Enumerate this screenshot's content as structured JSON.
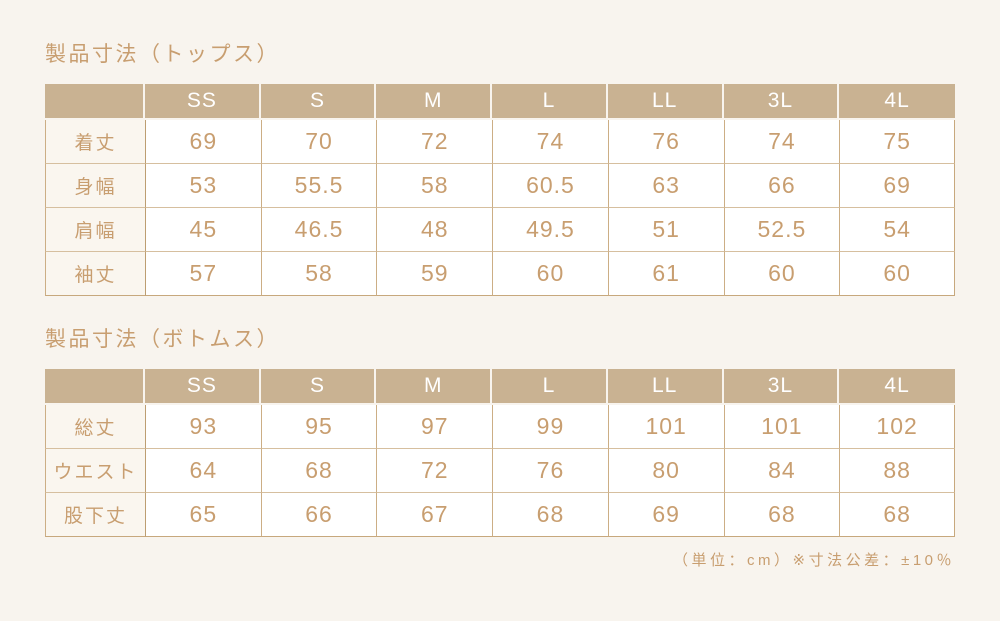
{
  "colors": {
    "background": "#f8f4ee",
    "header_background": "#c9b292",
    "header_text": "#ffffff",
    "text": "#c89e70",
    "grid_border": "#ccae85",
    "label_cell_background": "#faf6ef",
    "data_cell_background": "#ffffff"
  },
  "tables": [
    {
      "title": "製品寸法（トップス）",
      "sizes": [
        "SS",
        "S",
        "M",
        "L",
        "LL",
        "3L",
        "4L"
      ],
      "rows": [
        {
          "label": "着丈",
          "values": [
            "69",
            "70",
            "72",
            "74",
            "76",
            "74",
            "75"
          ]
        },
        {
          "label": "身幅",
          "values": [
            "53",
            "55.5",
            "58",
            "60.5",
            "63",
            "66",
            "69"
          ]
        },
        {
          "label": "肩幅",
          "values": [
            "45",
            "46.5",
            "48",
            "49.5",
            "51",
            "52.5",
            "54"
          ]
        },
        {
          "label": "袖丈",
          "values": [
            "57",
            "58",
            "59",
            "60",
            "61",
            "60",
            "60"
          ]
        }
      ]
    },
    {
      "title": "製品寸法（ボトムス）",
      "sizes": [
        "SS",
        "S",
        "M",
        "L",
        "LL",
        "3L",
        "4L"
      ],
      "rows": [
        {
          "label": "総丈",
          "values": [
            "93",
            "95",
            "97",
            "99",
            "101",
            "101",
            "102"
          ]
        },
        {
          "label": "ウエスト",
          "values": [
            "64",
            "68",
            "72",
            "76",
            "80",
            "84",
            "88"
          ]
        },
        {
          "label": "股下丈",
          "values": [
            "65",
            "66",
            "67",
            "68",
            "69",
            "68",
            "68"
          ]
        }
      ]
    }
  ],
  "footer": {
    "note": "（単位：cm）※寸法公差：±10％"
  }
}
